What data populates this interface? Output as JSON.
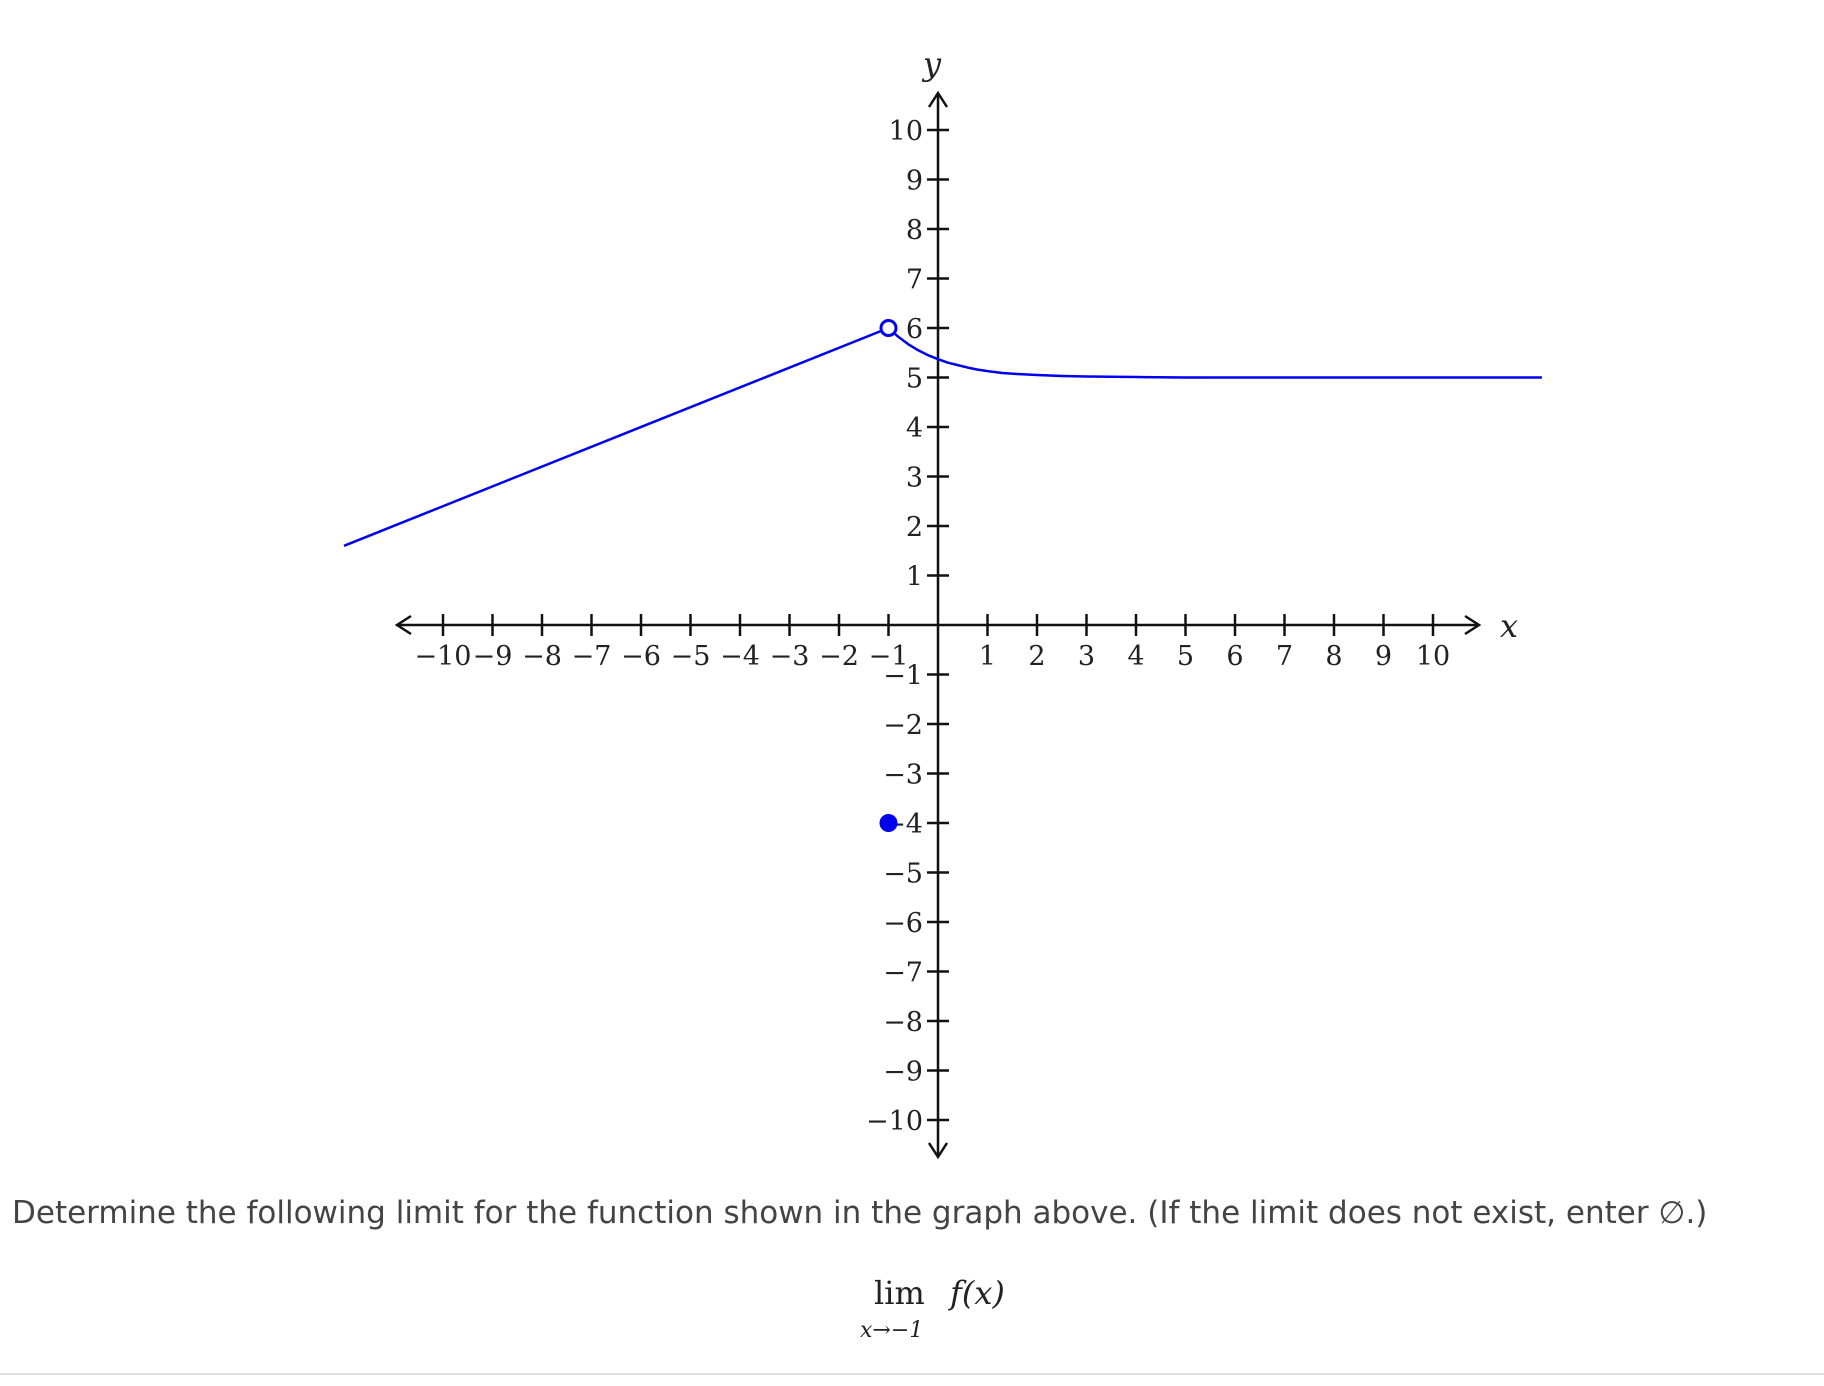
{
  "chart_data": {
    "type": "line",
    "xlabel": "x",
    "ylabel": "y",
    "xlim": [
      -10,
      10
    ],
    "ylim": [
      -10,
      10
    ],
    "grid": false,
    "x_ticks": [
      -10,
      -9,
      -8,
      -7,
      -6,
      -5,
      -4,
      -3,
      -2,
      -1,
      1,
      2,
      3,
      4,
      5,
      6,
      7,
      8,
      9,
      10
    ],
    "y_ticks": [
      -10,
      -9,
      -8,
      -7,
      -6,
      -5,
      -4,
      -3,
      -2,
      -1,
      1,
      2,
      3,
      4,
      5,
      6,
      7,
      8,
      9,
      10
    ],
    "x_tick_labels": [
      "−10",
      "−9",
      "−8",
      "−7",
      "−6",
      "−5",
      "−4",
      "−3",
      "−2",
      "−1",
      "1",
      "2",
      "3",
      "4",
      "5",
      "6",
      "7",
      "8",
      "9",
      "10"
    ],
    "y_tick_labels": [
      "−10",
      "−9",
      "−8",
      "−7",
      "−6",
      "−5",
      "−4",
      "−3",
      "−2",
      "−1",
      "1",
      "2",
      "3",
      "4",
      "5",
      "6",
      "7",
      "8",
      "9",
      "10"
    ],
    "series": [
      {
        "color": "#0000ee",
        "x": [
          -12,
          -1
        ],
        "y": [
          1.6,
          6
        ]
      },
      {
        "color": "#0000ee",
        "x": [
          -1,
          -0.8,
          -0.6,
          -0.4,
          -0.2,
          0,
          0.2,
          0.4,
          0.6,
          0.8,
          1,
          1.3,
          1.6,
          2,
          2.5,
          3,
          4,
          5,
          6,
          8,
          10,
          12.2
        ],
        "y": [
          6,
          5.82,
          5.67,
          5.55,
          5.45,
          5.37,
          5.3,
          5.25,
          5.2,
          5.16,
          5.13,
          5.09,
          5.07,
          5.05,
          5.03,
          5.02,
          5.01,
          5.0,
          5.0,
          5.0,
          5.0,
          5.0
        ]
      }
    ],
    "points": [
      {
        "x": -1,
        "y": 6,
        "style": "open",
        "color": "#0000ee"
      },
      {
        "x": -1,
        "y": -4,
        "style": "closed",
        "color": "#0000ee"
      }
    ]
  },
  "question": {
    "text": "Determine the following limit for the function shown in the graph above. (If the limit does not exist, enter ∅.)"
  },
  "limit": {
    "operator": "lim",
    "function": "f(x)",
    "subscript": "x→−1"
  }
}
